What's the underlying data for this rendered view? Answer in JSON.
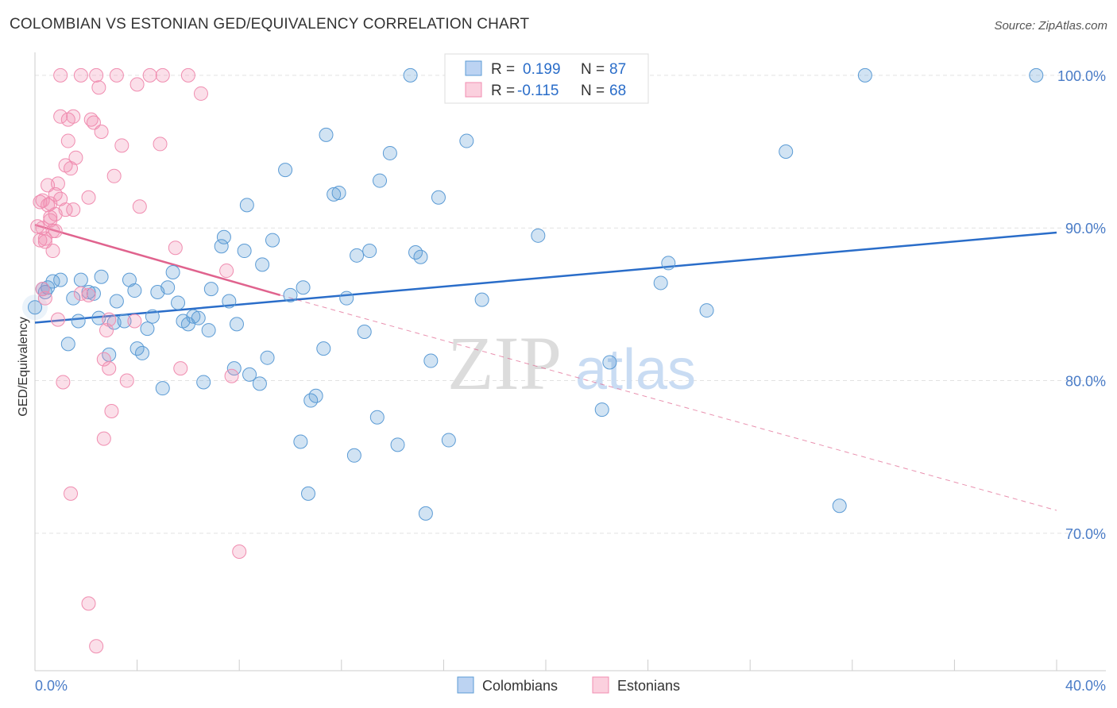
{
  "title": "COLOMBIAN VS ESTONIAN GED/EQUIVALENCY CORRELATION CHART",
  "source": "Source: ZipAtlas.com",
  "watermark": {
    "zip": "ZIP",
    "atlas": "atlas"
  },
  "colors": {
    "blue": "#5b9bd5",
    "blue_line": "#2a6dc9",
    "pink": "#f08db0",
    "pink_line": "#e0638e",
    "axis_text": "#4a7cc7"
  },
  "legend_box": [
    {
      "r_label": "R =",
      "r_value": "0.199",
      "n_label": "N =",
      "n_value": "87"
    },
    {
      "r_label": "R =",
      "r_value": "-0.115",
      "n_label": "N =",
      "n_value": "68"
    }
  ],
  "bottom_legend": [
    "Colombians",
    "Estonians"
  ],
  "chart_data": {
    "type": "scatter",
    "title": "COLOMBIAN VS ESTONIAN GED/EQUIVALENCY CORRELATION CHART",
    "xlabel": "",
    "ylabel": "GED/Equivalency",
    "xlim": [
      0,
      40
    ],
    "ylim": [
      61,
      101.5
    ],
    "x_tick_labels": [
      "0.0%",
      "40.0%"
    ],
    "y_ticks": [
      70,
      80,
      90,
      100
    ],
    "y_tick_labels": [
      "70.0%",
      "80.0%",
      "90.0%",
      "100.0%"
    ],
    "series": [
      {
        "name": "Colombians",
        "R": 0.199,
        "N": 87,
        "trend": {
          "x": [
            0,
            40
          ],
          "y": [
            83.8,
            89.7
          ]
        },
        "points": [
          [
            0.0,
            84.8
          ],
          [
            0.3,
            86.0
          ],
          [
            0.4,
            85.8
          ],
          [
            0.5,
            86.1
          ],
          [
            0.7,
            86.5
          ],
          [
            1.0,
            86.6
          ],
          [
            1.3,
            82.4
          ],
          [
            1.5,
            85.4
          ],
          [
            1.7,
            83.9
          ],
          [
            1.8,
            86.6
          ],
          [
            2.1,
            85.8
          ],
          [
            2.3,
            85.7
          ],
          [
            2.5,
            84.1
          ],
          [
            2.6,
            86.8
          ],
          [
            2.9,
            81.7
          ],
          [
            3.1,
            83.8
          ],
          [
            3.2,
            85.2
          ],
          [
            3.5,
            83.9
          ],
          [
            3.7,
            86.6
          ],
          [
            3.9,
            85.9
          ],
          [
            4.0,
            82.1
          ],
          [
            4.2,
            81.8
          ],
          [
            4.4,
            83.4
          ],
          [
            4.6,
            84.2
          ],
          [
            4.8,
            85.8
          ],
          [
            5.0,
            79.5
          ],
          [
            5.2,
            86.1
          ],
          [
            5.4,
            87.1
          ],
          [
            5.6,
            85.1
          ],
          [
            5.8,
            83.9
          ],
          [
            6.0,
            83.7
          ],
          [
            6.2,
            84.2
          ],
          [
            6.4,
            84.1
          ],
          [
            6.6,
            79.9
          ],
          [
            6.8,
            83.3
          ],
          [
            6.9,
            86.0
          ],
          [
            7.3,
            88.8
          ],
          [
            7.4,
            89.4
          ],
          [
            7.6,
            85.2
          ],
          [
            7.8,
            80.8
          ],
          [
            7.9,
            83.7
          ],
          [
            8.2,
            88.5
          ],
          [
            8.3,
            91.5
          ],
          [
            8.4,
            80.4
          ],
          [
            8.8,
            79.8
          ],
          [
            8.9,
            87.6
          ],
          [
            9.1,
            81.5
          ],
          [
            9.3,
            89.2
          ],
          [
            9.8,
            93.8
          ],
          [
            10.0,
            85.6
          ],
          [
            10.4,
            76.0
          ],
          [
            10.5,
            86.1
          ],
          [
            10.7,
            72.6
          ],
          [
            10.8,
            78.7
          ],
          [
            11.0,
            79.0
          ],
          [
            11.3,
            82.1
          ],
          [
            11.4,
            96.1
          ],
          [
            11.7,
            92.2
          ],
          [
            11.9,
            92.3
          ],
          [
            12.2,
            85.4
          ],
          [
            12.5,
            75.1
          ],
          [
            12.6,
            88.2
          ],
          [
            12.9,
            83.2
          ],
          [
            13.1,
            88.5
          ],
          [
            13.4,
            77.6
          ],
          [
            13.5,
            93.1
          ],
          [
            13.9,
            94.9
          ],
          [
            14.2,
            75.8
          ],
          [
            14.7,
            100.0
          ],
          [
            14.9,
            88.4
          ],
          [
            15.1,
            88.1
          ],
          [
            15.3,
            71.3
          ],
          [
            15.5,
            81.3
          ],
          [
            15.8,
            92.0
          ],
          [
            16.2,
            76.1
          ],
          [
            16.9,
            95.7
          ],
          [
            17.5,
            85.3
          ],
          [
            19.7,
            89.5
          ],
          [
            22.2,
            78.1
          ],
          [
            22.5,
            81.2
          ],
          [
            24.5,
            86.4
          ],
          [
            24.8,
            87.7
          ],
          [
            26.3,
            84.6
          ],
          [
            29.4,
            95.0
          ],
          [
            31.5,
            71.8
          ],
          [
            32.5,
            100.0
          ],
          [
            39.2,
            100.0
          ]
        ]
      },
      {
        "name": "Estonians",
        "R": -0.115,
        "N": 68,
        "trend": {
          "x": [
            0,
            9.6
          ],
          "y": [
            90.2,
            85.6
          ]
        },
        "trend_extension": {
          "x": [
            9.6,
            40
          ],
          "y": [
            85.6,
            71.5
          ]
        },
        "points": [
          [
            0.1,
            90.1
          ],
          [
            0.2,
            89.2
          ],
          [
            0.3,
            91.8
          ],
          [
            0.3,
            86.0
          ],
          [
            0.4,
            89.3
          ],
          [
            0.4,
            85.4
          ],
          [
            0.5,
            92.8
          ],
          [
            0.6,
            91.6
          ],
          [
            0.6,
            90.7
          ],
          [
            0.7,
            89.8
          ],
          [
            0.7,
            88.5
          ],
          [
            0.8,
            90.9
          ],
          [
            0.8,
            92.2
          ],
          [
            0.9,
            92.9
          ],
          [
            0.9,
            84.0
          ],
          [
            1.0,
            91.9
          ],
          [
            1.0,
            97.3
          ],
          [
            1.1,
            79.9
          ],
          [
            1.2,
            94.1
          ],
          [
            1.2,
            91.2
          ],
          [
            1.3,
            97.1
          ],
          [
            1.3,
            95.7
          ],
          [
            1.4,
            93.9
          ],
          [
            1.5,
            97.3
          ],
          [
            1.5,
            91.2
          ],
          [
            1.6,
            94.6
          ],
          [
            1.0,
            100.0
          ],
          [
            1.8,
            100.0
          ],
          [
            1.4,
            72.6
          ],
          [
            1.8,
            85.7
          ],
          [
            2.1,
            92.0
          ],
          [
            2.1,
            85.6
          ],
          [
            2.1,
            65.4
          ],
          [
            2.2,
            97.1
          ],
          [
            2.3,
            96.9
          ],
          [
            2.4,
            62.6
          ],
          [
            2.4,
            100.0
          ],
          [
            2.5,
            99.2
          ],
          [
            2.6,
            96.3
          ],
          [
            2.7,
            81.4
          ],
          [
            2.7,
            76.2
          ],
          [
            2.8,
            83.3
          ],
          [
            2.9,
            80.8
          ],
          [
            2.9,
            84.0
          ],
          [
            3.0,
            78.0
          ],
          [
            3.1,
            93.4
          ],
          [
            3.2,
            100.0
          ],
          [
            3.4,
            95.4
          ],
          [
            3.6,
            80.0
          ],
          [
            3.9,
            83.9
          ],
          [
            4.0,
            99.4
          ],
          [
            4.1,
            91.4
          ],
          [
            4.5,
            100.0
          ],
          [
            4.9,
            95.5
          ],
          [
            5.0,
            100.0
          ],
          [
            5.5,
            88.7
          ],
          [
            5.7,
            80.8
          ],
          [
            6.0,
            100.0
          ],
          [
            6.5,
            98.8
          ],
          [
            7.5,
            87.2
          ],
          [
            7.7,
            80.3
          ],
          [
            8.0,
            68.8
          ],
          [
            0.2,
            91.7
          ],
          [
            0.4,
            89.1
          ],
          [
            0.6,
            90.5
          ],
          [
            0.8,
            89.8
          ],
          [
            0.5,
            91.5
          ],
          [
            0.3,
            90.0
          ]
        ]
      }
    ]
  }
}
